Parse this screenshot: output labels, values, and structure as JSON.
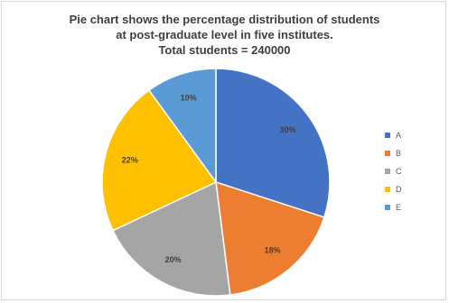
{
  "chart_data": {
    "type": "pie",
    "title_lines": [
      "Pie chart shows the percentage distribution of students",
      "at post-graduate level in five institutes.",
      "Total students = 240000"
    ],
    "categories": [
      "A",
      "B",
      "C",
      "D",
      "E"
    ],
    "values": [
      30,
      18,
      20,
      22,
      10
    ],
    "data_labels": [
      "30%",
      "18%",
      "20%",
      "22%",
      "10%"
    ],
    "colors": [
      "#4472c4",
      "#ed7d31",
      "#a5a5a5",
      "#ffc000",
      "#5b9bd5"
    ],
    "legend_position": "right"
  }
}
